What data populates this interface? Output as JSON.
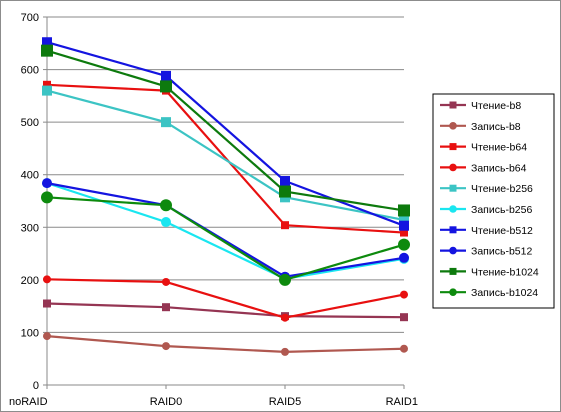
{
  "chart_data": {
    "type": "line",
    "categories": [
      "noRAID",
      "RAID0",
      "RAID5",
      "RAID1"
    ],
    "ylim": [
      0,
      700
    ],
    "yticks": [
      0,
      100,
      200,
      300,
      400,
      500,
      600,
      700
    ],
    "grid": true,
    "legend": "right",
    "series": [
      {
        "name": "Чтение-b8",
        "values": [
          155,
          148,
          131,
          129
        ],
        "color": "#953553",
        "marker": "square",
        "marker_size": "small"
      },
      {
        "name": "Запись-b8",
        "values": [
          93,
          74,
          63,
          69
        ],
        "color": "#b05850",
        "marker": "circle",
        "marker_size": "small"
      },
      {
        "name": "Чтение-b64",
        "values": [
          571,
          560,
          304,
          290
        ],
        "color": "#e81010",
        "marker": "square",
        "marker_size": "small"
      },
      {
        "name": "Запись-b64",
        "values": [
          201,
          196,
          128,
          172
        ],
        "color": "#e81010",
        "marker": "circle",
        "marker_size": "small"
      },
      {
        "name": "Чтение-b256",
        "values": [
          560,
          500,
          357,
          314
        ],
        "color": "#3cc4c4",
        "marker": "square",
        "marker_size": "medium"
      },
      {
        "name": "Запись-b256",
        "values": [
          384,
          310,
          202,
          240
        ],
        "color": "#1ae6f0",
        "marker": "circle",
        "marker_size": "medium"
      },
      {
        "name": "Чтение-b512",
        "values": [
          652,
          588,
          388,
          303
        ],
        "color": "#1414e0",
        "marker": "square",
        "marker_size": "medium"
      },
      {
        "name": "Запись-b512",
        "values": [
          384,
          342,
          206,
          242
        ],
        "color": "#1414e0",
        "marker": "circle",
        "marker_size": "medium"
      },
      {
        "name": "Чтение-b1024",
        "values": [
          636,
          568,
          368,
          332
        ],
        "color": "#0d7a0d",
        "marker": "square",
        "marker_size": "large"
      },
      {
        "name": "Запись-b1024",
        "values": [
          357,
          342,
          200,
          267
        ],
        "color": "#0d8a0d",
        "marker": "circle",
        "marker_size": "large"
      }
    ]
  }
}
